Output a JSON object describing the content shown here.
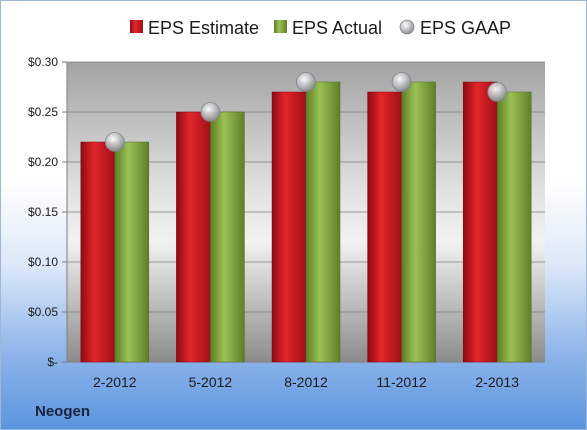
{
  "company": "Neogen",
  "colors": {
    "estimate": "#c8161d",
    "actual": "#7fa53a",
    "gaap": "#b9bcc0"
  },
  "chart_data": {
    "type": "bar",
    "categories": [
      "2-2012",
      "5-2012",
      "8-2012",
      "11-2012",
      "2-2013"
    ],
    "series": [
      {
        "name": "EPS Estimate",
        "values": [
          0.22,
          0.25,
          0.27,
          0.27,
          0.28
        ]
      },
      {
        "name": "EPS Actual",
        "values": [
          0.22,
          0.25,
          0.28,
          0.28,
          0.27
        ]
      },
      {
        "name": "EPS GAAP",
        "values": [
          0.22,
          0.25,
          0.28,
          0.28,
          0.27
        ],
        "marker": "circle"
      }
    ],
    "y_ticks": [
      "$-",
      "$0.05",
      "$0.10",
      "$0.15",
      "$0.20",
      "$0.25",
      "$0.30"
    ],
    "ylim": [
      0,
      0.3
    ],
    "grid": true,
    "legend_position": "top"
  }
}
